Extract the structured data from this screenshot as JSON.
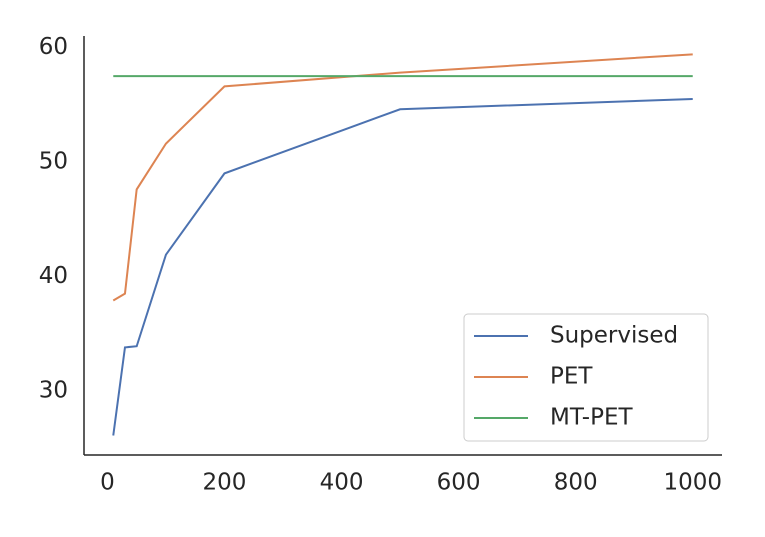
{
  "chart_data": {
    "type": "line",
    "x": [
      10,
      30,
      50,
      100,
      200,
      500,
      1000
    ],
    "series": [
      {
        "name": "Supervised",
        "color": "#4c72b0",
        "values": [
          26.1,
          33.8,
          33.9,
          41.9,
          49.0,
          54.6,
          55.5
        ]
      },
      {
        "name": "PET",
        "color": "#dd8452",
        "values": [
          37.9,
          38.5,
          47.6,
          51.6,
          56.6,
          57.8,
          59.4
        ]
      },
      {
        "name": "MT-PET",
        "color": "#55a868",
        "values": [
          57.5,
          57.5,
          57.5,
          57.5,
          57.5,
          57.5,
          57.5
        ]
      }
    ],
    "xlim": [
      -40,
      1050
    ],
    "ylim": [
      24.4,
      61
    ],
    "xticks": [
      0,
      200,
      400,
      600,
      800,
      1000
    ],
    "yticks": [
      30,
      40,
      50,
      60
    ],
    "legend": "lower right"
  }
}
